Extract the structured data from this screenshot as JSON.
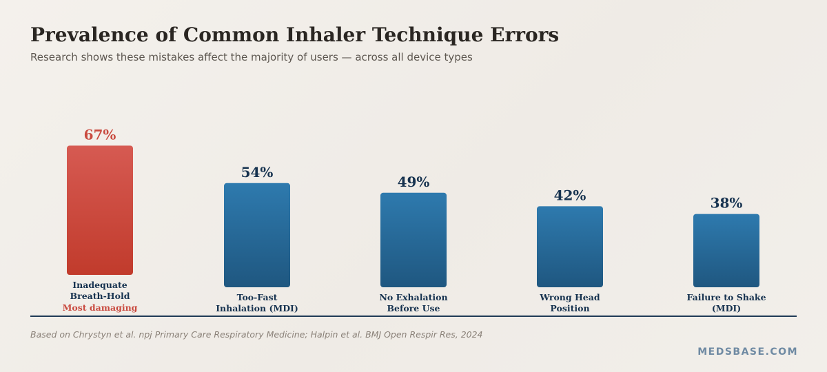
{
  "title": "Prevalence of Common Inhaler Technique Errors",
  "subtitle": "Research shows these mistakes affect the majority of users — across all device types",
  "footnote": "Based on Chrystyn et al. npj Primary Care Respiratory Medicine; Halpin et al. BMJ Open Respir Res, 2024",
  "brand": "MEDSBASE.COM",
  "colors": {
    "highlight": "#c94a3f",
    "bar": "#2c6f9f",
    "dark_text": "#16324f",
    "axis": "#1f3a56"
  },
  "chart_data": {
    "type": "bar",
    "categories": [
      [
        "Inadequate",
        "Breath-Hold"
      ],
      [
        "Too-Fast",
        "Inhalation (MDI)"
      ],
      [
        "No Exhalation",
        "Before Use"
      ],
      [
        "Wrong Head",
        "Position"
      ],
      [
        "Failure to Shake",
        "(MDI)"
      ]
    ],
    "values": [
      67,
      54,
      49,
      42,
      38
    ],
    "value_labels": [
      "67%",
      "54%",
      "49%",
      "42%",
      "38%"
    ],
    "unit": "%",
    "highlight_index": 0,
    "highlight_note": "Most damaging",
    "xlabel": "",
    "ylabel": "",
    "ylim": [
      0,
      100
    ],
    "grid": false,
    "legend": "none"
  }
}
